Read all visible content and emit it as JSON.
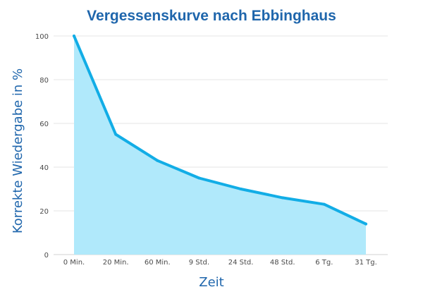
{
  "chart_data": {
    "type": "area",
    "title": "Vergessenskurve nach Ebbinghaus",
    "xlabel": "Zeit",
    "ylabel": "Korrekte Wiedergabe in %",
    "categories": [
      "0 Min.",
      "20 Min.",
      "60 Min.",
      "9 Std.",
      "24 Std.",
      "48 Std.",
      "6 Tg.",
      "31 Tg."
    ],
    "series": [
      {
        "values": [
          100,
          55,
          43,
          35,
          30,
          26,
          23,
          14
        ]
      }
    ],
    "ylim": [
      0,
      100
    ],
    "yticks": [
      0,
      20,
      40,
      60,
      80,
      100
    ],
    "grid": true,
    "colors": {
      "line": "#12ade6",
      "fill": "#b0e9fb",
      "title": "#1f66ac",
      "axis_label": "#1f66ac",
      "tick": "#4a4a4a",
      "grid": "#e6e6e6"
    }
  }
}
